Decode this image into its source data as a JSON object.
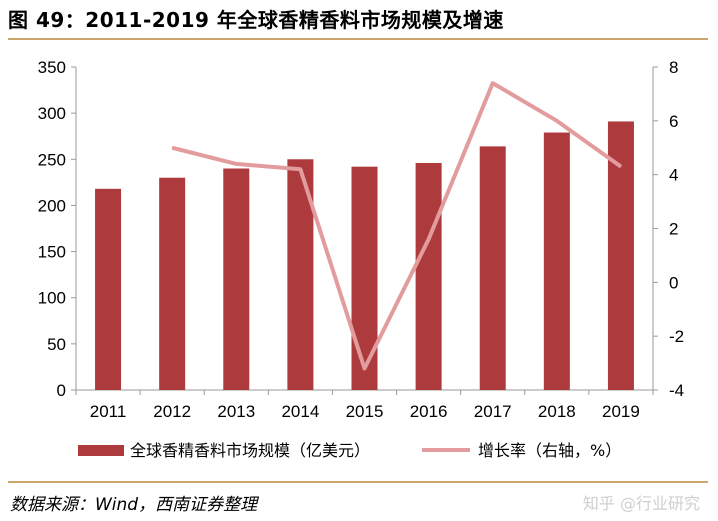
{
  "header": {
    "title": "图 49：2011-2019 年全球香精香料市场规模及增速"
  },
  "footer": {
    "source": "数据来源：Wind，西南证券整理",
    "watermark": "知乎 @行业研究"
  },
  "colors": {
    "bar": "#ad3a3c",
    "line": "#e29c9e",
    "axis": "#9a9a9a",
    "rule": "#c9a66b"
  },
  "chart_data": {
    "type": "bar+line",
    "categories": [
      "2011",
      "2012",
      "2013",
      "2014",
      "2015",
      "2016",
      "2017",
      "2018",
      "2019"
    ],
    "series": [
      {
        "name": "全球香精香料市场规模（亿美元）",
        "type": "bar",
        "axis": "left",
        "values": [
          218,
          230,
          240,
          250,
          242,
          246,
          264,
          279,
          291
        ]
      },
      {
        "name": "增长率（右轴，%）",
        "type": "line",
        "axis": "right",
        "values": [
          null,
          5.0,
          4.4,
          4.2,
          -3.2,
          1.6,
          7.4,
          6.0,
          4.3
        ]
      }
    ],
    "left_axis": {
      "min": 0,
      "max": 350,
      "ticks": [
        "0",
        "50",
        "100",
        "150",
        "200",
        "250",
        "300",
        "350"
      ]
    },
    "right_axis": {
      "min": -4,
      "max": 8,
      "ticks": [
        "-4",
        "-2",
        "0",
        "2",
        "4",
        "6",
        "8"
      ]
    },
    "grid": false,
    "legend_position": "bottom"
  }
}
